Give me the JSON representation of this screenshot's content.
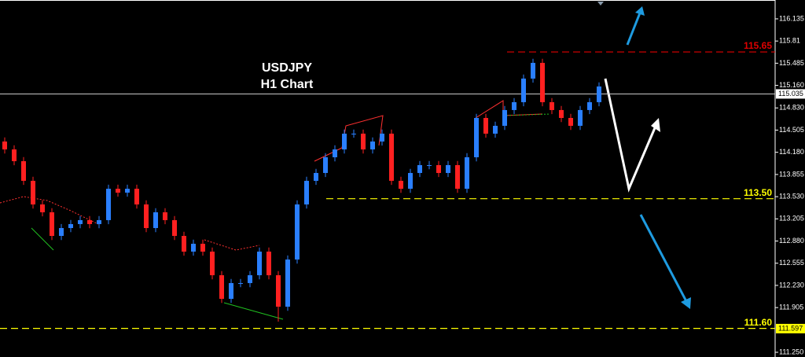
{
  "chart_data": {
    "type": "candlestick",
    "title": "USDJPY",
    "subtitle": "H1 Chart",
    "up_color": "#2a7fff",
    "down_color": "#ff2020",
    "open": [
      114.338,
      114.222,
      114.05,
      113.762,
      113.416,
      113.301,
      112.955,
      113.07,
      113.128,
      113.186,
      113.128,
      113.186,
      113.646,
      113.589,
      113.646,
      113.416,
      113.07,
      113.301,
      113.186,
      112.955,
      112.725,
      112.84,
      112.725,
      112.379,
      112.033,
      112.264,
      112.264,
      112.379,
      112.725,
      112.379,
      111.918,
      112.609,
      113.416,
      113.762,
      113.877,
      114.107,
      114.222,
      114.453,
      114.453,
      114.222,
      114.338,
      114.453,
      113.762,
      113.646,
      113.877,
      113.992,
      113.992,
      113.877,
      113.992,
      113.646,
      114.107,
      114.683,
      114.453,
      114.568,
      114.799,
      114.914,
      115.26,
      115.49,
      114.914,
      114.799,
      114.683,
      114.568,
      114.799,
      114.914
    ],
    "high": [
      114.398,
      114.282,
      114.11,
      113.822,
      113.476,
      113.361,
      113.13,
      113.188,
      113.246,
      113.246,
      113.246,
      113.706,
      113.706,
      113.706,
      113.706,
      113.476,
      113.361,
      113.361,
      113.246,
      113.015,
      112.9,
      112.9,
      112.785,
      112.439,
      112.324,
      112.324,
      112.439,
      112.785,
      112.785,
      112.439,
      112.669,
      113.476,
      113.822,
      113.937,
      114.167,
      114.282,
      114.513,
      114.513,
      114.513,
      114.398,
      114.513,
      114.513,
      113.822,
      113.937,
      114.052,
      114.052,
      114.052,
      114.052,
      114.052,
      114.167,
      114.743,
      114.743,
      114.628,
      114.859,
      114.974,
      115.32,
      115.55,
      115.55,
      114.974,
      114.859,
      114.743,
      114.859,
      114.974,
      115.204
    ],
    "low": [
      114.162,
      113.99,
      113.702,
      113.356,
      113.241,
      112.895,
      112.895,
      113.01,
      113.068,
      113.068,
      113.068,
      113.126,
      113.529,
      113.529,
      113.356,
      113.01,
      113.01,
      113.126,
      112.895,
      112.665,
      112.665,
      112.665,
      112.319,
      111.973,
      111.973,
      112.204,
      112.204,
      112.319,
      112.319,
      111.7,
      111.858,
      112.549,
      113.356,
      113.702,
      113.817,
      114.047,
      114.162,
      114.393,
      114.162,
      114.162,
      114.278,
      113.702,
      113.586,
      113.586,
      113.817,
      113.932,
      113.817,
      113.817,
      113.586,
      113.586,
      114.047,
      114.393,
      114.393,
      114.508,
      114.739,
      114.854,
      115.2,
      114.854,
      114.739,
      114.623,
      114.508,
      114.508,
      114.739,
      114.854
    ],
    "close": [
      114.222,
      114.05,
      113.762,
      113.416,
      113.301,
      112.955,
      113.07,
      113.128,
      113.186,
      113.128,
      113.186,
      113.646,
      113.589,
      113.646,
      113.416,
      113.07,
      113.301,
      113.186,
      112.955,
      112.725,
      112.84,
      112.725,
      112.379,
      112.033,
      112.264,
      112.264,
      112.379,
      112.725,
      112.379,
      111.918,
      112.609,
      113.416,
      113.762,
      113.877,
      114.107,
      114.222,
      114.453,
      114.453,
      114.222,
      114.338,
      114.453,
      113.762,
      113.646,
      113.877,
      113.992,
      113.992,
      113.877,
      113.992,
      113.646,
      114.107,
      114.683,
      114.453,
      114.568,
      114.799,
      114.914,
      115.26,
      115.49,
      114.914,
      114.799,
      114.683,
      114.568,
      114.799,
      114.914,
      115.144
    ],
    "ylim": [
      111.181,
      116.411
    ],
    "yticks": [
      116.135,
      115.81,
      115.485,
      {
        "value": 115.16,
        "label": "115.160"
      },
      {
        "value": 114.83,
        "label": "114.830"
      },
      114.505,
      {
        "value": 114.18,
        "label": "114.180"
      },
      113.855,
      {
        "value": 113.53,
        "label": "113.530"
      },
      113.205,
      {
        "value": 112.88,
        "label": "112.880"
      },
      112.555,
      {
        "value": 112.23,
        "label": "112.230"
      },
      111.905,
      {
        "value": 111.25,
        "label": "111.250"
      }
    ],
    "levels": [
      {
        "value": 115.65,
        "label": "115.65",
        "color": "#e00000"
      },
      {
        "value": 113.5,
        "label": "113.50",
        "color": "#ffff00"
      },
      {
        "value": 111.6,
        "label": "111.60",
        "color": "#ffff00"
      }
    ],
    "current_price": 115.035,
    "price_marker": 111.597
  }
}
